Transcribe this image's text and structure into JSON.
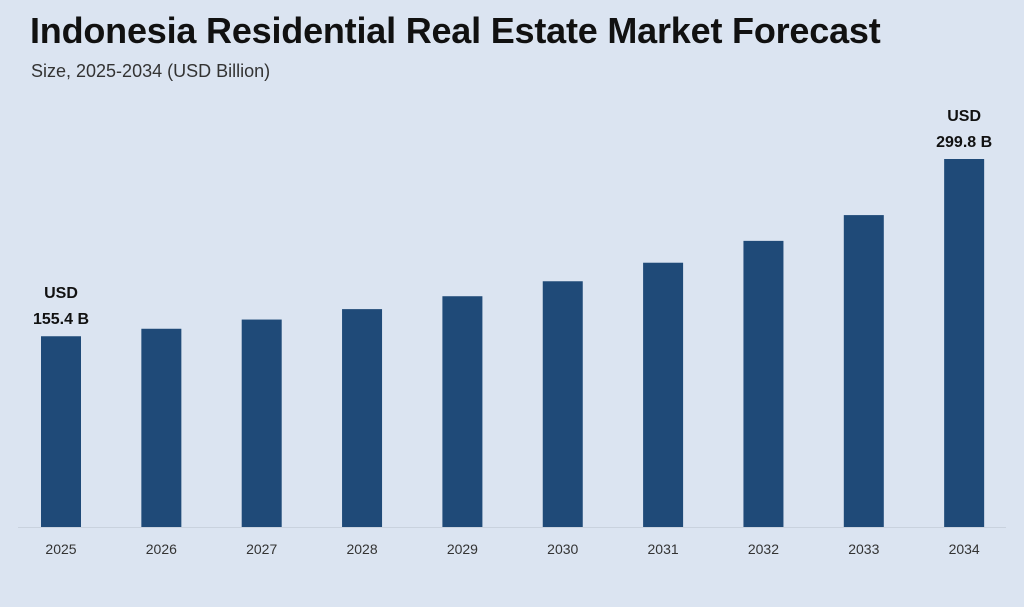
{
  "title": "Indonesia Residential Real Estate Market Forecast",
  "subtitle": "Size, 2025-2034 (USD Billion)",
  "chart_data": {
    "type": "bar",
    "title": "Indonesia Residential Real Estate Market Forecast",
    "subtitle": "Size, 2025-2034 (USD Billion)",
    "categories": [
      "2025",
      "2026",
      "2027",
      "2028",
      "2029",
      "2030",
      "2031",
      "2032",
      "2033",
      "2034"
    ],
    "values": [
      155.4,
      161.5,
      169.0,
      177.5,
      188.0,
      200.2,
      215.3,
      233.1,
      254.1,
      299.8
    ],
    "annotations": [
      {
        "index": 0,
        "lines": [
          "USD",
          "155.4 B"
        ]
      },
      {
        "index": 9,
        "lines": [
          "USD",
          "299.8 B"
        ]
      }
    ],
    "ylim": [
      0,
      300
    ],
    "grid": false,
    "legend": "none",
    "bar_color": "#1f4a78",
    "baseline_color": "#c9d2de"
  }
}
